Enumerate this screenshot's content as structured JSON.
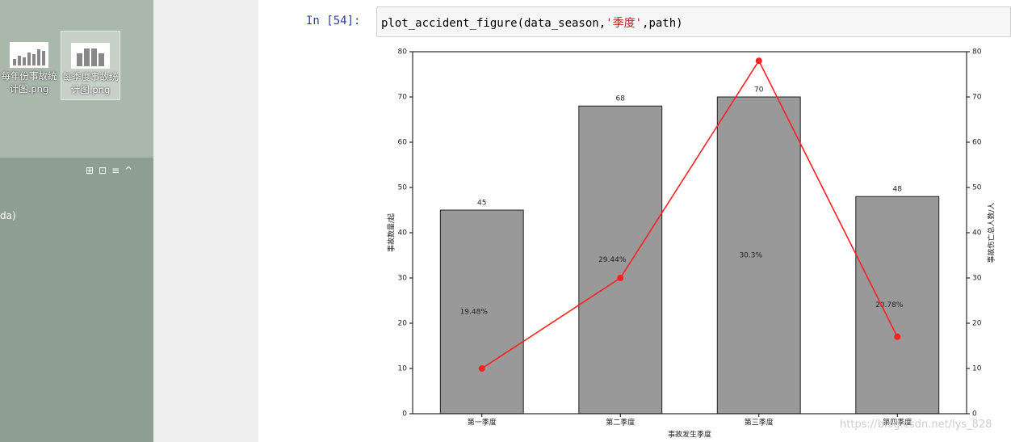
{
  "desktop": {
    "icons": [
      {
        "lines": [
          "每年份事故统",
          "计图.png"
        ]
      },
      {
        "lines": [
          "每季度事故统",
          "计图.png"
        ]
      }
    ],
    "pane_text": "da)"
  },
  "cell": {
    "prompt": "In [54]:",
    "code": [
      "plot_accident_figure(data_season,",
      "'季度'",
      ",path)"
    ]
  },
  "chart_data": {
    "type": "bar",
    "categories": [
      "第一季度",
      "第二季度",
      "第三季度",
      "第四季度"
    ],
    "series": [
      {
        "type": "bar",
        "color": "#999999",
        "values": [
          45,
          68,
          70,
          48
        ]
      },
      {
        "type": "line",
        "axis": "y2",
        "color": "#ff2020",
        "values": [
          10,
          30,
          78,
          17
        ]
      }
    ],
    "annotations": [
      "19.48%",
      "29.44%",
      "30.3%",
      "20.78%"
    ],
    "xlabel": "事故发生季度",
    "ylabel": "事故数量/起",
    "y2label": "事故伤亡总人数/人",
    "ylim": [
      0,
      80
    ],
    "yticks": [
      0,
      10,
      20,
      30,
      40,
      50,
      60,
      70,
      80
    ],
    "y2lim": [
      0,
      80
    ],
    "y2ticks": [
      0,
      10,
      20,
      30,
      40,
      50,
      60,
      70,
      80
    ],
    "watermark": "https://blog.csdn.net/lys_828"
  }
}
